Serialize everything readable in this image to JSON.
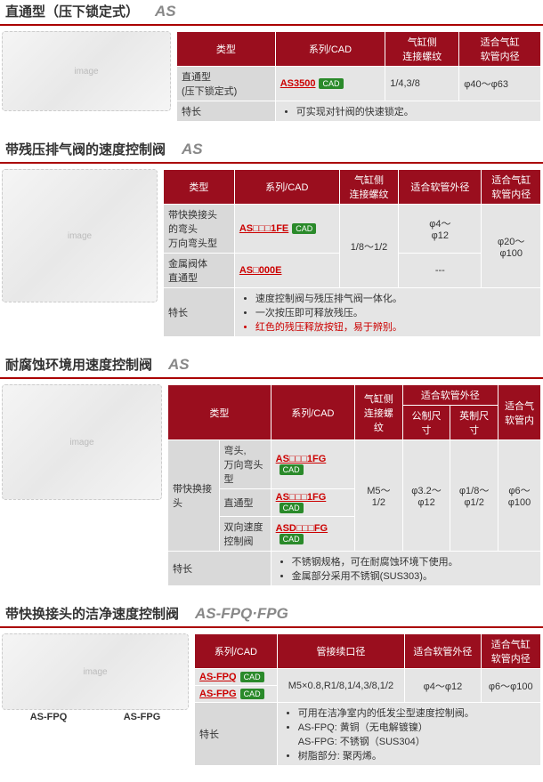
{
  "cad_label": "CAD",
  "sections": [
    {
      "title": "直通型（压下锁定式）",
      "model": "AS",
      "img_size": "sz1",
      "table": {
        "headers": [
          "类型",
          "系列/CAD",
          "气缸侧\n连接螺纹",
          "适合气缸\n软管内径"
        ],
        "rows": [
          {
            "cells": [
              {
                "text": "直通型\n(压下锁定式)",
                "cls": "rowhead"
              },
              {
                "link": "AS3500",
                "cad": true
              },
              {
                "text": "1/4,3/8"
              },
              {
                "text": "φ40～φ63"
              }
            ]
          }
        ],
        "feature_label": "特长",
        "feature_colspan": 3,
        "features": [
          "可实现对针阀的快速锁定。"
        ]
      }
    },
    {
      "title": "带残压排气阀的速度控制阀",
      "model": "AS",
      "img_size": "sz2",
      "table": {
        "headers": [
          "类型",
          "系列/CAD",
          "气缸侧\n连接螺纹",
          "适合软管外径",
          "适合气缸\n软管内径"
        ],
        "rows": [
          {
            "cells": [
              {
                "text": "带快换接头\n的弯头\n万向弯头型",
                "cls": "rowhead"
              },
              {
                "link": "AS□□□1FE",
                "cad": true
              },
              {
                "text": "1/8～1/2",
                "rowspan": 2,
                "cls": "center"
              },
              {
                "text": "φ4～\nφ12",
                "cls": "center"
              },
              {
                "text": "φ20～\nφ100",
                "rowspan": 2,
                "cls": "center"
              }
            ]
          },
          {
            "cells": [
              {
                "text": "金属阀体\n直通型",
                "cls": "rowhead"
              },
              {
                "link": "AS□000E"
              },
              {
                "text": "---",
                "cls": "center"
              }
            ]
          }
        ],
        "feature_label": "特长",
        "feature_colspan": 4,
        "features": [
          "速度控制阀与残压排气阀一体化。",
          "一次按压即可释放残压。",
          {
            "text": "红色的残压释放按钮，易于辨别。",
            "red": true
          }
        ]
      }
    },
    {
      "title": "耐腐蚀环境用速度控制阀",
      "model": "AS",
      "img_size": "sz3",
      "table": {
        "headers_complex": true,
        "rows": [
          {
            "cells": [
              {
                "text": "带快换接头",
                "rowspan": 3,
                "cls": "rowhead"
              },
              {
                "text": "弯头,\n万向弯头型",
                "cls": "rowhead"
              },
              {
                "link": "AS□□□1FG",
                "cad": true
              },
              {
                "text": "M5～\n1/2",
                "rowspan": 3,
                "cls": "center"
              },
              {
                "text": "φ3.2～\nφ12",
                "rowspan": 3,
                "cls": "center"
              },
              {
                "text": "φ1/8～\nφ1/2",
                "rowspan": 3,
                "cls": "center"
              },
              {
                "text": "φ6～\nφ100",
                "rowspan": 3,
                "cls": "center"
              }
            ]
          },
          {
            "cells": [
              {
                "text": "直通型",
                "cls": "rowhead"
              },
              {
                "link": "AS□□□1FG",
                "cad": true
              }
            ]
          },
          {
            "cells": [
              {
                "text": "双向速度\n控制阀",
                "cls": "rowhead"
              },
              {
                "link": "ASD□□□FG",
                "cad": true
              }
            ]
          }
        ],
        "feature_label": "特长",
        "feature_colspan": 5,
        "features": [
          "不锈钢规格，可在耐腐蚀环境下使用。",
          "金属部分采用不锈钢(SUS303)。"
        ]
      }
    },
    {
      "title": "带快换接头的洁净速度控制阀",
      "model": "AS-FPQ·FPG",
      "img_size": "sz4",
      "img_labels": [
        "AS-FPQ",
        "AS-FPG"
      ],
      "table": {
        "headers": [
          "系列/CAD",
          "管接续口径",
          "适合软管外径",
          "适合气缸\n软管内径"
        ],
        "rows": [
          {
            "cells": [
              {
                "link": "AS-FPQ",
                "cad": true
              },
              {
                "text": "M5×0.8,R1/8,1/4,3/8,1/2",
                "rowspan": 2,
                "cls": "center"
              },
              {
                "text": "φ4～φ12",
                "rowspan": 2,
                "cls": "center"
              },
              {
                "text": "φ6～φ100",
                "rowspan": 2,
                "cls": "center"
              }
            ]
          },
          {
            "cells": [
              {
                "link": "AS-FPG",
                "cad": true
              }
            ]
          }
        ],
        "feature_label": "特长",
        "feature_colspan": 3,
        "features": [
          "可用在洁净室内的低发尘型速度控制阀。",
          "AS-FPQ: 黄铜（无电解镀镍）\nAS-FPG: 不锈钢（SUS304）",
          "树脂部分: 聚丙烯。"
        ]
      }
    }
  ],
  "t3_headers": {
    "type": "类型",
    "series": "系列/CAD",
    "thread": "气缸侧\n连接螺纹",
    "tube_od": "适合软管外径",
    "metric": "公制尺寸",
    "inch": "英制尺寸",
    "cyl": "适合气\n软管内"
  }
}
